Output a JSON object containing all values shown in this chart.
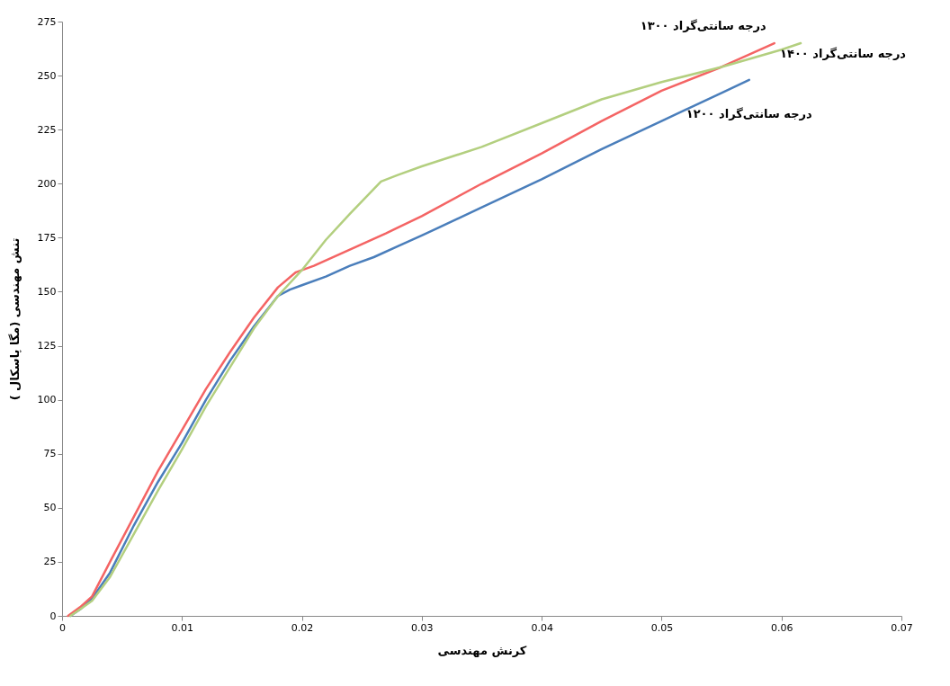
{
  "chart_data": {
    "type": "line",
    "xlabel": "کرنش مهندسی",
    "ylabel": "تنش مهندسی (مگا پاسکال )",
    "xlim": [
      0,
      0.07
    ],
    "ylim": [
      0,
      275
    ],
    "xticks": [
      0,
      0.01,
      0.02,
      0.03,
      0.04,
      0.05,
      0.06,
      0.07
    ],
    "yticks": [
      0,
      25,
      50,
      75,
      100,
      125,
      150,
      175,
      200,
      225,
      250,
      275
    ],
    "grid": false,
    "legend": false,
    "marker": "none",
    "line_style": "solid",
    "series": [
      {
        "name": "۱۲۰۰ درجه سانتی‌گراد",
        "color": "#4a7ebb",
        "x": [
          0.0007,
          0.0015,
          0.0025,
          0.004,
          0.006,
          0.008,
          0.01,
          0.012,
          0.014,
          0.016,
          0.018,
          0.019,
          0.02,
          0.022,
          0.024,
          0.026,
          0.028,
          0.03,
          0.035,
          0.04,
          0.045,
          0.05,
          0.055,
          0.0573
        ],
        "values": [
          0,
          3,
          8,
          20,
          42,
          62,
          80,
          100,
          118,
          134,
          148,
          151,
          153,
          157,
          162,
          166,
          171,
          176,
          189,
          202,
          216,
          229,
          242,
          248
        ]
      },
      {
        "name": "۱۳۰۰ درجه سانتی‌گراد",
        "color": "#f46464",
        "x": [
          0.0005,
          0.0015,
          0.0025,
          0.004,
          0.006,
          0.008,
          0.01,
          0.012,
          0.014,
          0.016,
          0.018,
          0.0195,
          0.021,
          0.023,
          0.025,
          0.027,
          0.03,
          0.035,
          0.04,
          0.045,
          0.05,
          0.055,
          0.0594
        ],
        "values": [
          0,
          4,
          9,
          25,
          46,
          67,
          86,
          105,
          122,
          138,
          152,
          159,
          162,
          167,
          172,
          177,
          185,
          200,
          214,
          229,
          243,
          254,
          265
        ]
      },
      {
        "name": "۱۴۰۰ درجه سانتی‌گراد",
        "color": "#b3cf7f",
        "x": [
          0.0007,
          0.0015,
          0.0025,
          0.004,
          0.006,
          0.008,
          0.01,
          0.012,
          0.014,
          0.016,
          0.018,
          0.02,
          0.022,
          0.024,
          0.0266,
          0.028,
          0.03,
          0.035,
          0.04,
          0.045,
          0.05,
          0.055,
          0.06,
          0.0616
        ],
        "values": [
          0,
          3,
          7,
          18,
          38,
          58,
          77,
          97,
          115,
          133,
          148,
          160,
          174,
          186,
          201,
          204,
          208,
          217,
          228,
          239,
          247,
          254,
          262,
          265
        ]
      }
    ]
  }
}
